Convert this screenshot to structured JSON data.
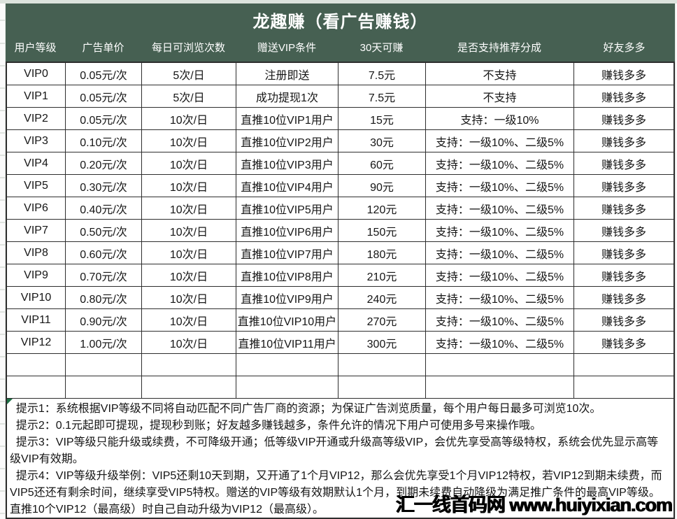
{
  "page": {
    "title": "龙趣赚（看广告赚钱）",
    "watermark": "汇一线首码网  www.huiyixian.com"
  },
  "colors": {
    "header_green": "#466052",
    "top_strip": "#dce3dd",
    "border_dark": "#2e2e2e",
    "comment_triangle_green": "#1e7145",
    "header_text": "#ffffff",
    "body_text": "#151515"
  },
  "table": {
    "headers": [
      "用户等级",
      "广告单价",
      "每日可浏览次数",
      "赠送VIP条件",
      "30天可赚",
      "是否支持推荐分成",
      "好友多多"
    ],
    "rows": [
      [
        "VIP0",
        "0.05元/次",
        "5次/日",
        "注册即送",
        "7.5元",
        "不支持",
        "赚钱多多"
      ],
      [
        "VIP1",
        "0.05元/次",
        "5次/日",
        "成功提现1次",
        "7.5元",
        "不支持",
        "赚钱多多"
      ],
      [
        "VIP2",
        "0.05元/次",
        "10次/日",
        "直推10位VIP1用户",
        "15元",
        "支持：一级10%",
        "赚钱多多"
      ],
      [
        "VIP3",
        "0.10元/次",
        "10次/日",
        "直推10位VIP2用户",
        "30元",
        "支持：一级10%、二级5%",
        "赚钱多多"
      ],
      [
        "VIP4",
        "0.20元/次",
        "10次/日",
        "直推10位VIP3用户",
        "60元",
        "支持：一级10%、二级5%",
        "赚钱多多"
      ],
      [
        "VIP5",
        "0.30元/次",
        "10次/日",
        "直推10位VIP4用户",
        "90元",
        "支持：一级10%、二级5%",
        "赚钱多多"
      ],
      [
        "VIP6",
        "0.40元/次",
        "10次/日",
        "直推10位VIP5用户",
        "120元",
        "支持：一级10%、二级5%",
        "赚钱多多"
      ],
      [
        "VIP7",
        "0.50元/次",
        "10次/日",
        "直推10位VIP6用户",
        "150元",
        "支持：一级10%、二级5%",
        "赚钱多多"
      ],
      [
        "VIP8",
        "0.60元/次",
        "10次/日",
        "直推10位VIP7用户",
        "180元",
        "支持：一级10%、二级5%",
        "赚钱多多"
      ],
      [
        "VIP9",
        "0.70元/次",
        "10次/日",
        "直推10位VIP8用户",
        "210元",
        "支持：一级10%、二级5%",
        "赚钱多多"
      ],
      [
        "VIP10",
        "0.80元/次",
        "10次/日",
        "直推10位VIP9用户",
        "240元",
        "支持：一级10%、二级5%",
        "赚钱多多"
      ],
      [
        "VIP11",
        "0.90元/次",
        "10次/日",
        "直推10位VIP10用户",
        "270元",
        "支持：一级10%、二级5%",
        "赚钱多多"
      ],
      [
        "VIP12",
        "1.00元/次",
        "10次/日",
        "直推10位VIP11用户",
        "300元",
        "支持：一级10%、二级5%",
        "赚钱多多"
      ],
      [
        "",
        "",
        "",
        "",
        "",
        "",
        ""
      ],
      [
        "",
        "",
        "",
        "",
        "",
        "",
        ""
      ]
    ]
  },
  "notes": [
    "  提示1：系统根据VIP等级不同将自动匹配不同广告厂商的资源；为保证广告浏览质量，每个用户每日最多可浏览10次。",
    "  提示2：0.1元起即可提现，提现秒到账；好友越多赚钱越多，条件允许的情况下用户可使用多号来操作哦。",
    "  提示3：VIP等级只能升级或续费，不可降级开通；低等级VIP开通或升级高等级VIP，会优先享受高等级特权，系统会优先显示高等级VIP有效期。",
    "  提示4：VIP等级升级举例：VIP5还剩10天到期，又开通了1个月VIP12，那么会优先享受1个月VIP12特权，若VIP12到期未续费，而VIP5还还有剩余时间，继续享受VIP5特权。赠送的VIP等级有效期默认1个月，到期未续费自动降级为满足推广条件的最高VIP等级。直推10个VIP12（最高级）时自己自动升级为VIP12（最高级）。"
  ]
}
